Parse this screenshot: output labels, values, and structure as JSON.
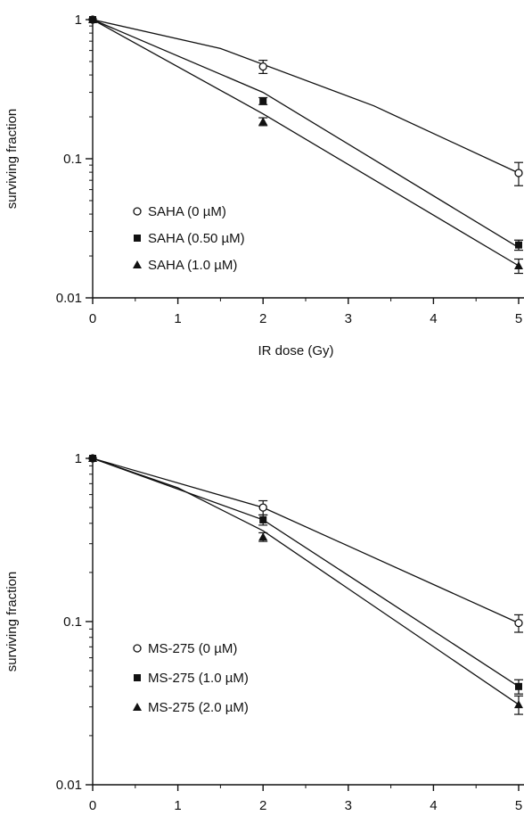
{
  "chart_data": [
    {
      "type": "scatter",
      "title": "",
      "xlabel": "IR dose (Gy)",
      "ylabel": "surviving fraction",
      "xlim": [
        0,
        5
      ],
      "ylim": [
        0.01,
        1
      ],
      "yscale": "log",
      "x_ticks": [
        "0",
        "1",
        "2",
        "3",
        "4",
        "5"
      ],
      "y_ticks": [
        {
          "value": 1,
          "label": "1"
        },
        {
          "value": 0.1,
          "label": "0.1"
        },
        {
          "value": 0.01,
          "label": "0.01"
        }
      ],
      "grid": false,
      "legend_position": "lower-left",
      "series": [
        {
          "name": "SAHA (0 µM)",
          "marker": "open-circle",
          "x": [
            0,
            2,
            5
          ],
          "y": [
            1,
            0.46,
            0.079
          ],
          "y_err": [
            0,
            0.05,
            0.015
          ],
          "fit_x": [
            0,
            1.5,
            3.3,
            5
          ],
          "fit_y": [
            1,
            0.62,
            0.24,
            0.079
          ]
        },
        {
          "name": "SAHA (0.50 µM)",
          "marker": "filled-square",
          "x": [
            0,
            2,
            5
          ],
          "y": [
            1,
            0.26,
            0.024
          ],
          "y_err": [
            0,
            0.015,
            0.002
          ],
          "fit_x": [
            0,
            2,
            5
          ],
          "fit_y": [
            1,
            0.3,
            0.023
          ]
        },
        {
          "name": "SAHA (1.0 µM)",
          "marker": "filled-triangle",
          "x": [
            0,
            2,
            5
          ],
          "y": [
            1,
            0.185,
            0.017
          ],
          "y_err": [
            0,
            0.012,
            0.002
          ],
          "fit_x": [
            0,
            2,
            5
          ],
          "fit_y": [
            1,
            0.21,
            0.017
          ]
        }
      ]
    },
    {
      "type": "scatter",
      "title": "",
      "xlabel": "IR dose (Gy)",
      "ylabel": "surviving fraction",
      "xlim": [
        0,
        5
      ],
      "ylim": [
        0.01,
        1
      ],
      "yscale": "log",
      "x_ticks": [
        "0",
        "1",
        "2",
        "3",
        "4",
        "5"
      ],
      "y_ticks": [
        {
          "value": 1,
          "label": "1"
        },
        {
          "value": 0.1,
          "label": "0.1"
        },
        {
          "value": 0.01,
          "label": "0.01"
        }
      ],
      "grid": false,
      "legend_position": "lower-left",
      "series": [
        {
          "name": "MS-275 (0 µM)",
          "marker": "open-circle",
          "x": [
            0,
            2,
            5
          ],
          "y": [
            1,
            0.5,
            0.098
          ],
          "y_err": [
            0,
            0.05,
            0.012
          ],
          "fit_x": [
            0,
            2,
            5
          ],
          "fit_y": [
            1,
            0.5,
            0.098
          ]
        },
        {
          "name": "MS-275 (1.0 µM)",
          "marker": "filled-square",
          "x": [
            0,
            2,
            5
          ],
          "y": [
            1,
            0.42,
            0.04
          ],
          "y_err": [
            0,
            0.03,
            0.004
          ],
          "fit_x": [
            0,
            2,
            5
          ],
          "fit_y": [
            1,
            0.42,
            0.04
          ]
        },
        {
          "name": "MS-275 (2.0 µM)",
          "marker": "filled-triangle",
          "x": [
            0,
            2,
            5
          ],
          "y": [
            1,
            0.33,
            0.031
          ],
          "y_err": [
            0,
            0.02,
            0.004
          ],
          "fit_x": [
            0,
            1,
            2,
            5
          ],
          "fit_y": [
            1,
            0.66,
            0.36,
            0.031
          ]
        }
      ]
    }
  ]
}
